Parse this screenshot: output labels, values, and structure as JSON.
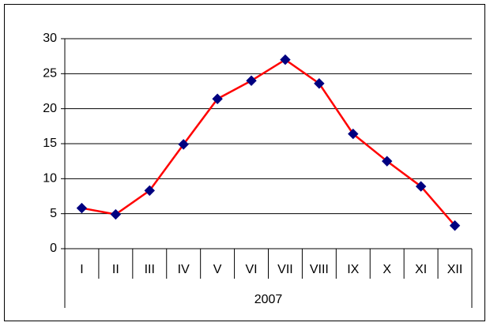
{
  "chart_data": {
    "type": "line",
    "categories": [
      "I",
      "II",
      "III",
      "IV",
      "V",
      "VI",
      "VII",
      "VIII",
      "IX",
      "X",
      "XI",
      "XII"
    ],
    "category_group": "2007",
    "series": [
      {
        "name": null,
        "color": "#ff0000",
        "marker_color": "#000080",
        "values": [
          5.8,
          4.9,
          8.3,
          14.9,
          21.4,
          24.0,
          27.0,
          23.6,
          16.4,
          12.5,
          8.9,
          3.3
        ]
      }
    ],
    "ylim": [
      0,
      30
    ],
    "yticks": [
      0,
      5,
      10,
      15,
      20,
      25,
      30
    ],
    "grid": true
  }
}
